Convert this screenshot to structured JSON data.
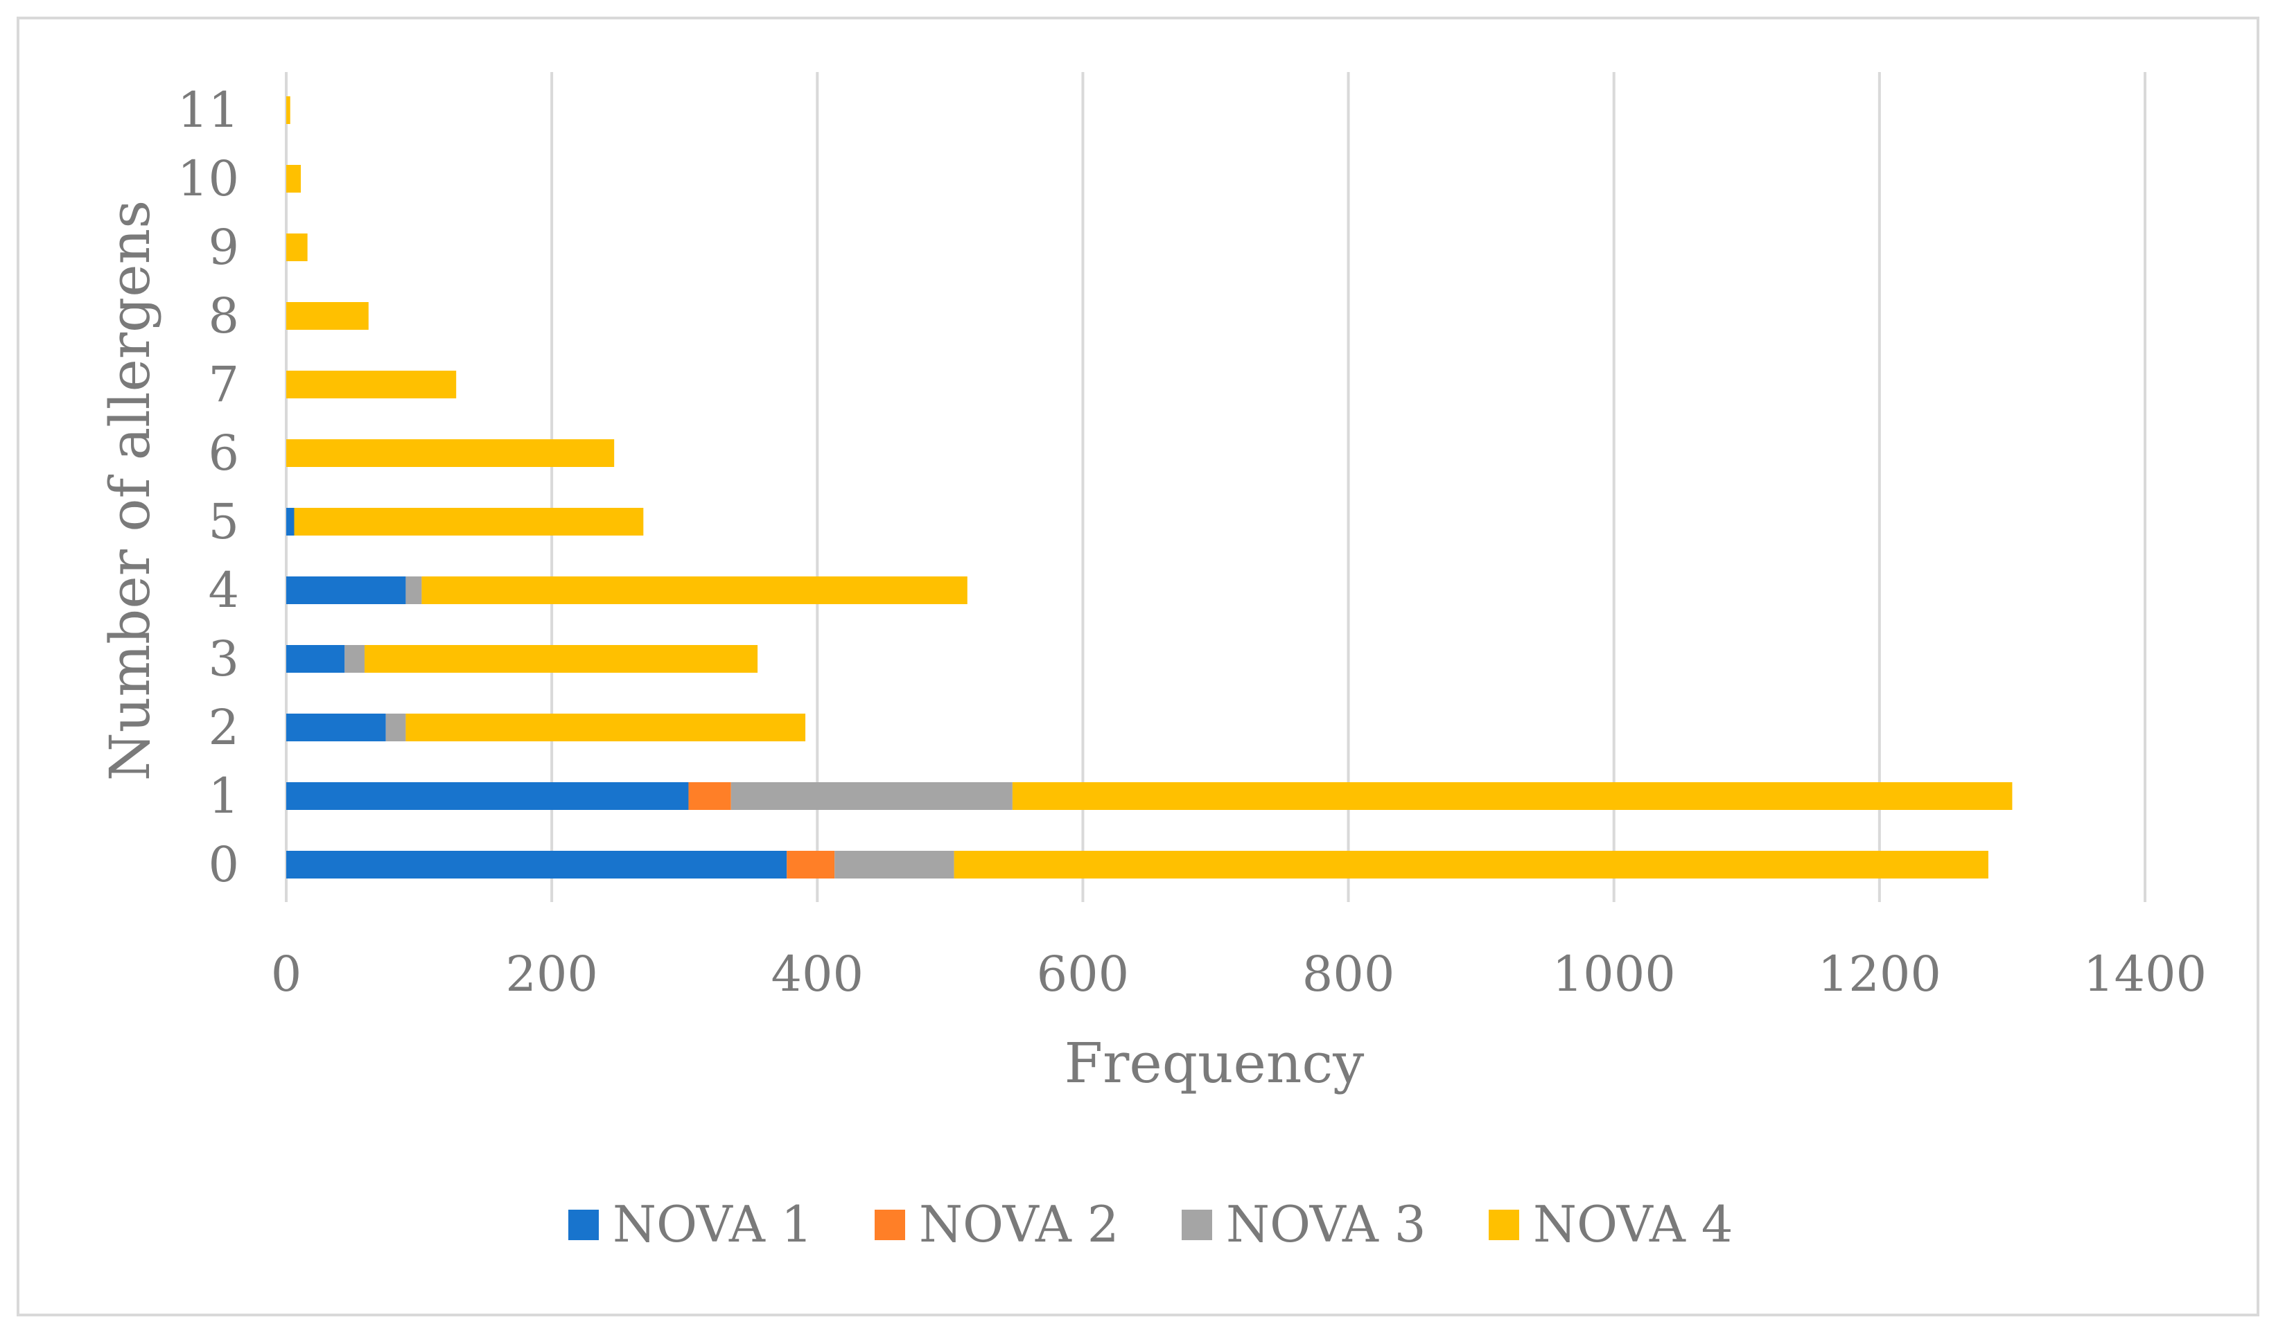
{
  "chart_data": {
    "type": "bar",
    "orientation": "horizontal",
    "stacked": true,
    "categories": [
      "0",
      "1",
      "2",
      "3",
      "4",
      "5",
      "6",
      "7",
      "8",
      "9",
      "10",
      "11"
    ],
    "series": [
      {
        "name": "NOVA 1",
        "color": "#1874cd",
        "values": [
          377,
          303,
          75,
          44,
          90,
          6,
          0,
          0,
          0,
          0,
          0,
          0
        ]
      },
      {
        "name": "NOVA 2",
        "color": "#ff7f27",
        "values": [
          36,
          32,
          0,
          0,
          0,
          0,
          0,
          0,
          0,
          0,
          0,
          0
        ]
      },
      {
        "name": "NOVA 3",
        "color": "#a5a5a5",
        "values": [
          90,
          212,
          15,
          15,
          12,
          0,
          0,
          0,
          0,
          0,
          0,
          0
        ]
      },
      {
        "name": "NOVA 4",
        "color": "#ffc000",
        "values": [
          779,
          753,
          301,
          296,
          411,
          263,
          247,
          128,
          62,
          16,
          11,
          3
        ]
      }
    ],
    "xlabel": "Frequency",
    "ylabel": "Number of allergens",
    "xlim": [
      0,
      1400
    ],
    "xticks": [
      "0",
      "200",
      "400",
      "600",
      "800",
      "1000",
      "1200",
      "1400"
    ],
    "grid": true,
    "legend": "bottom",
    "title": ""
  }
}
